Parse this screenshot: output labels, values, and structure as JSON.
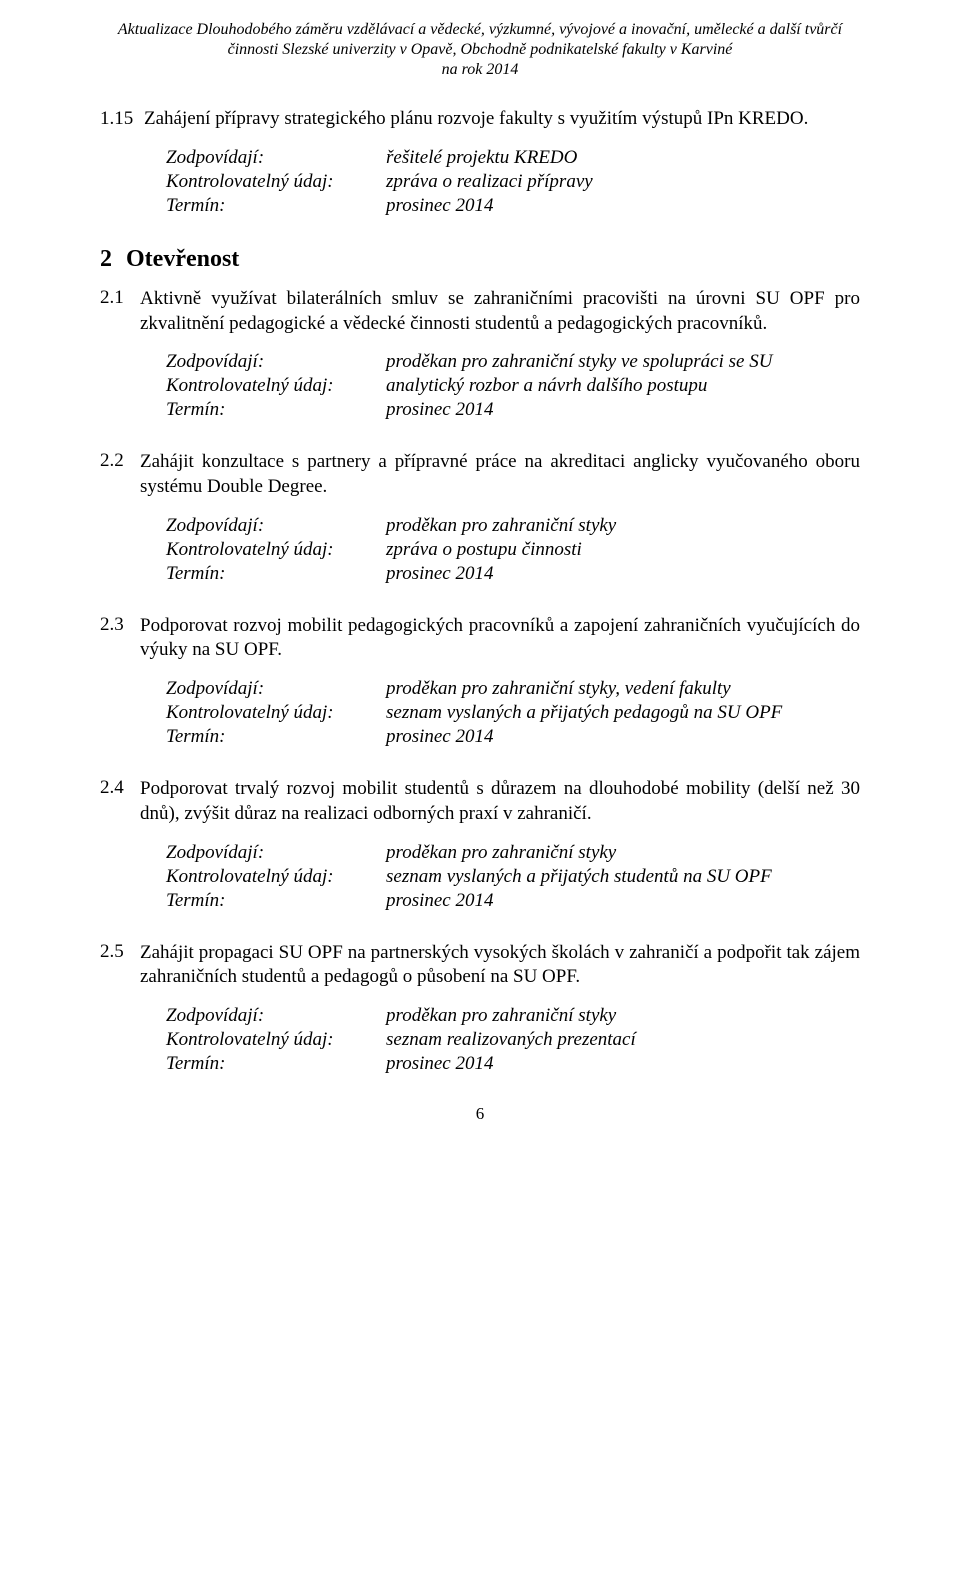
{
  "doc": {
    "header_line1": "Aktualizace Dlouhodobého záměru vzdělávací a vědecké, výzkumné, vývojové a inovační, umělecké a další tvůrčí",
    "header_line2": "činnosti Slezské univerzity v Opavě, Obchodně podnikatelské fakulty v Karviné",
    "header_line3": "na rok 2014",
    "page_number": "6"
  },
  "sec115": {
    "num": "1.15",
    "text": "Zahájení přípravy strategického plánu rozvoje fakulty s využitím výstupů IPn KREDO.",
    "resp": {
      "k1": "Zodpovídají:",
      "v1": "řešitelé projektu KREDO",
      "k2": "Kontrolovatelný údaj:",
      "v2": "zpráva o realizaci přípravy",
      "k3": "Termín:",
      "v3": "prosinec 2014"
    }
  },
  "h2": {
    "num": "2",
    "title": "Otevřenost"
  },
  "items": [
    {
      "num": "2.1",
      "text": "Aktivně využívat bilaterálních smluv se zahraničními pracovišti na úrovni SU OPF pro zkvalitnění pedagogické a vědecké činnosti studentů a pedagogických pracovníků.",
      "resp": {
        "k1": "Zodpovídají:",
        "v1": "proděkan pro zahraniční styky ve spolupráci se SU",
        "k2": "Kontrolovatelný údaj:",
        "v2": "analytický rozbor a návrh dalšího postupu",
        "k3": "Termín:",
        "v3": "prosinec 2014"
      }
    },
    {
      "num": "2.2",
      "text": "Zahájit konzultace s partnery a přípravné práce na akreditaci anglicky vyučovaného oboru systému Double Degree.",
      "resp": {
        "k1": "Zodpovídají:",
        "v1": "proděkan pro zahraniční styky",
        "k2": "Kontrolovatelný údaj:",
        "v2": "zpráva o postupu činnosti",
        "k3": "Termín:",
        "v3": "prosinec 2014"
      }
    },
    {
      "num": "2.3",
      "text": "Podporovat rozvoj mobilit pedagogických pracovníků a zapojení zahraničních vyučujících do výuky na SU OPF.",
      "resp": {
        "k1": "Zodpovídají:",
        "v1": "proděkan pro zahraniční styky, vedení fakulty",
        "k2": "Kontrolovatelný údaj:",
        "v2": "seznam vyslaných a přijatých pedagogů na SU OPF",
        "k3": "Termín:",
        "v3": "prosinec 2014"
      }
    },
    {
      "num": "2.4",
      "text": "Podporovat trvalý rozvoj mobilit studentů s důrazem na dlouhodobé mobility (delší než 30 dnů), zvýšit důraz na realizaci odborných praxí v zahraničí.",
      "resp": {
        "k1": "Zodpovídají:",
        "v1": "proděkan pro zahraniční styky",
        "k2": "Kontrolovatelný údaj:",
        "v2": "seznam vyslaných a přijatých studentů na SU OPF",
        "k3": "Termín:",
        "v3": "prosinec 2014"
      }
    },
    {
      "num": "2.5",
      "text": "Zahájit propagaci SU OPF na partnerských vysokých školách v zahraničí a podpořit tak zájem zahraničních studentů a pedagogů o působení na SU OPF.",
      "resp": {
        "k1": "Zodpovídají:",
        "v1": "proděkan pro zahraniční styky",
        "k2": "Kontrolovatelný údaj:",
        "v2": "seznam realizovaných prezentací",
        "k3": "Termín:",
        "v3": "prosinec 2014"
      }
    }
  ]
}
